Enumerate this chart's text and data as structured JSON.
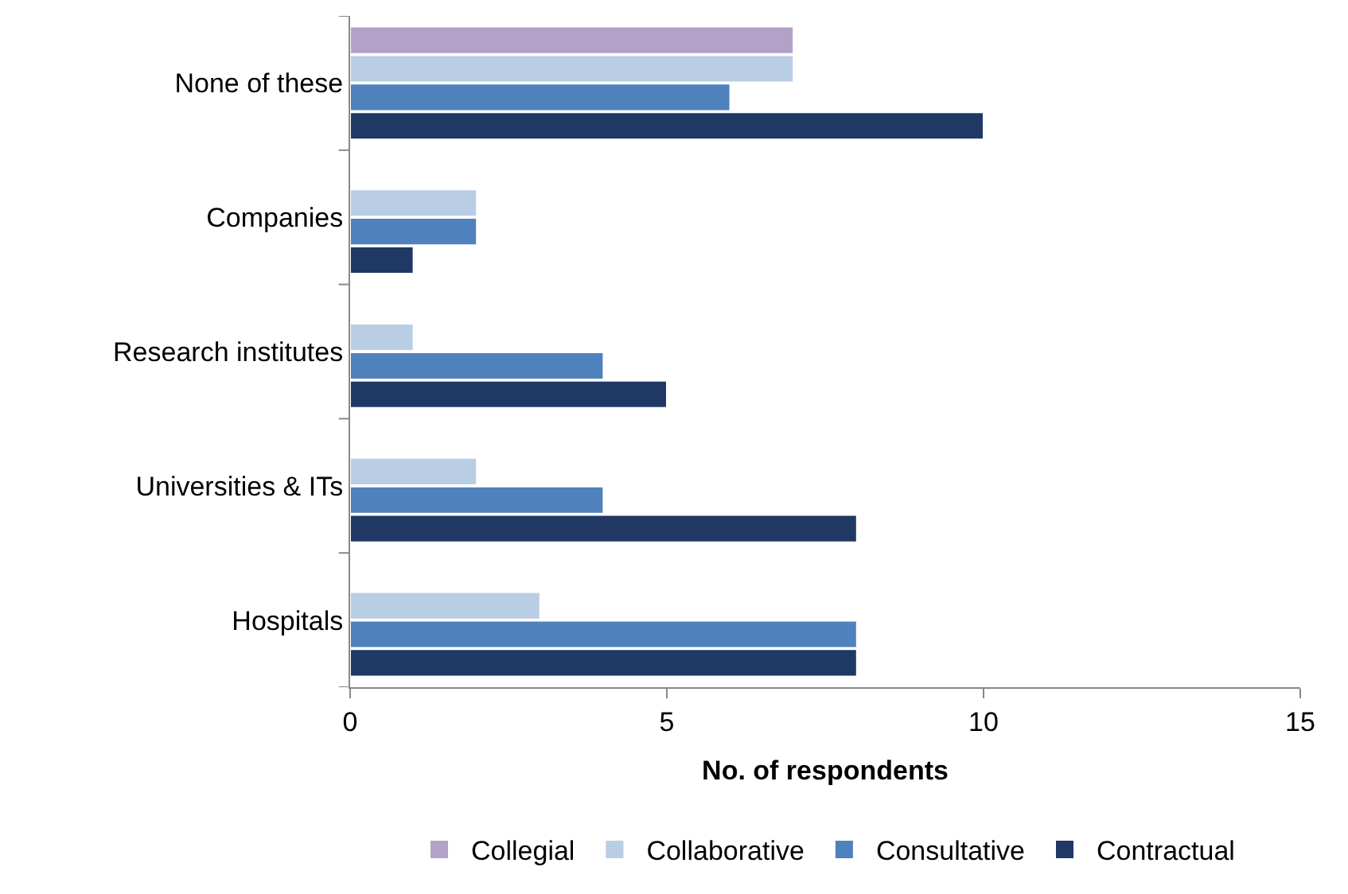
{
  "chart_data": {
    "type": "bar",
    "orientation": "horizontal",
    "xlabel": "No. of respondents",
    "categories": [
      "None of these",
      "Companies",
      "Research institutes",
      "Universities & ITs",
      "Hospitals"
    ],
    "series": [
      {
        "name": "Collegial",
        "color": "#b3a2c7",
        "values": [
          7,
          null,
          null,
          null,
          null
        ]
      },
      {
        "name": "Collaborative",
        "color": "#b9cde5",
        "values": [
          7,
          2,
          1,
          2,
          3
        ]
      },
      {
        "name": "Consultative",
        "color": "#4f81bd",
        "values": [
          6,
          2,
          4,
          4,
          8
        ]
      },
      {
        "name": "Contractual",
        "color": "#1f3864",
        "values": [
          10,
          1,
          5,
          8,
          8
        ]
      }
    ],
    "xlim": [
      0,
      15
    ],
    "xticks": [
      0,
      5,
      10,
      15
    ],
    "legend": "bottom"
  }
}
